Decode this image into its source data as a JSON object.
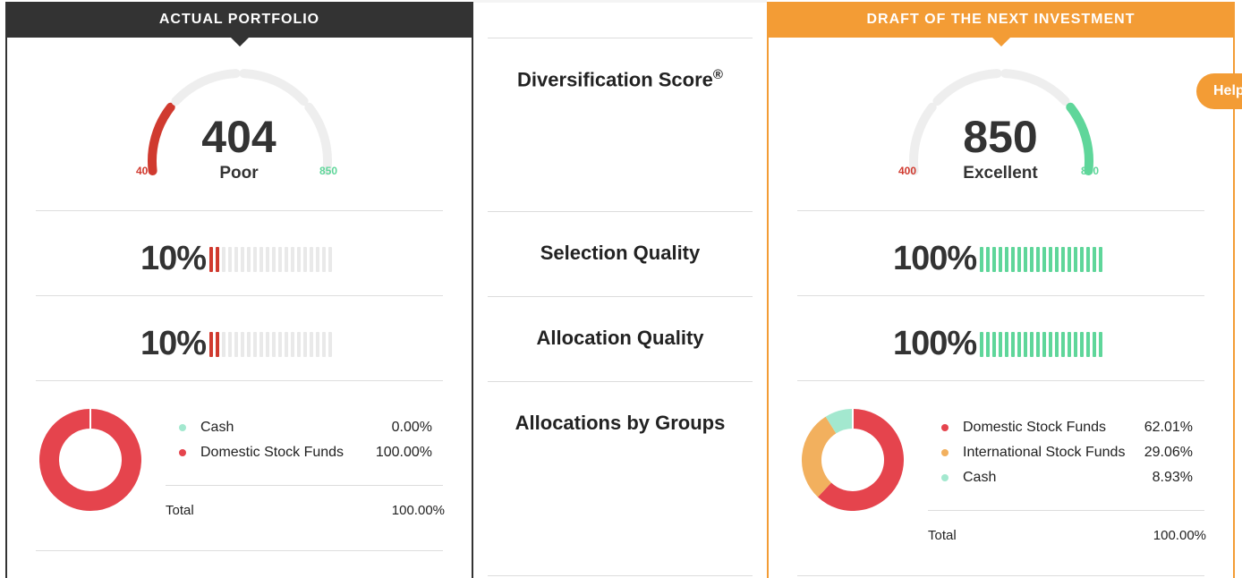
{
  "left": {
    "header": "ACTUAL PORTFOLIO",
    "score": "404",
    "rating": "Poor",
    "min": "400",
    "max": "850",
    "selection_pct": "10%",
    "selection_level": 0.1,
    "allocation_pct": "10%",
    "allocation_level": 0.1,
    "donut": [
      {
        "label": "Cash",
        "value": "0.00%",
        "color": "#a3e8cf"
      },
      {
        "label": "Domestic Stock Funds",
        "value": "100.00%",
        "color": "#e5444d"
      }
    ],
    "total_label": "Total",
    "total_value": "100.00%"
  },
  "middle": {
    "score_label": "Diversification Score",
    "score_mark": "®",
    "selection_label": "Selection Quality",
    "allocation_label": "Allocation Quality",
    "groups_label": "Allocations by Groups"
  },
  "right": {
    "header": "DRAFT OF THE NEXT INVESTMENT",
    "score": "850",
    "rating": "Excellent",
    "min": "400",
    "max": "850",
    "selection_pct": "100%",
    "selection_level": 1.0,
    "allocation_pct": "100%",
    "allocation_level": 1.0,
    "donut": [
      {
        "label": "Domestic Stock Funds",
        "value": "62.01%",
        "color": "#e5444d"
      },
      {
        "label": "International Stock Funds",
        "value": "29.06%",
        "color": "#f2b05e"
      },
      {
        "label": "Cash",
        "value": "8.93%",
        "color": "#a3e8cf"
      }
    ],
    "total_label": "Total",
    "total_value": "100.00%"
  },
  "help": "Help",
  "colors": {
    "accent": "#f39c35",
    "dark": "#333333",
    "poor": "#d03a2f",
    "excellent": "#5fd69a",
    "track": "#eeeeee"
  }
}
